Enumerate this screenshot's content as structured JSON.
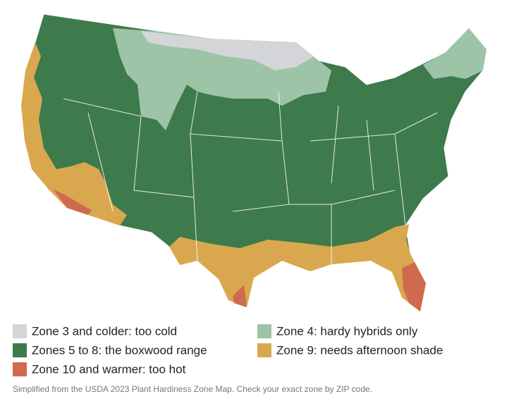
{
  "legend": {
    "items": [
      {
        "label": "Zone 3 and colder: too cold",
        "color": "#d3d5d8"
      },
      {
        "label": "Zone 4: hardy hybrids only",
        "color": "#9dc4a6"
      },
      {
        "label": "Zones 5 to 8: the boxwood range",
        "color": "#3d7a4c"
      },
      {
        "label": "Zone 9: needs afternoon shade",
        "color": "#d9a84e"
      },
      {
        "label": "Zone 10 and warmer: too hot",
        "color": "#cf6a4f"
      }
    ]
  },
  "footnote": "Simplified from the USDA 2023 Plant Hardiness Zone Map. Check your exact zone by ZIP code."
}
